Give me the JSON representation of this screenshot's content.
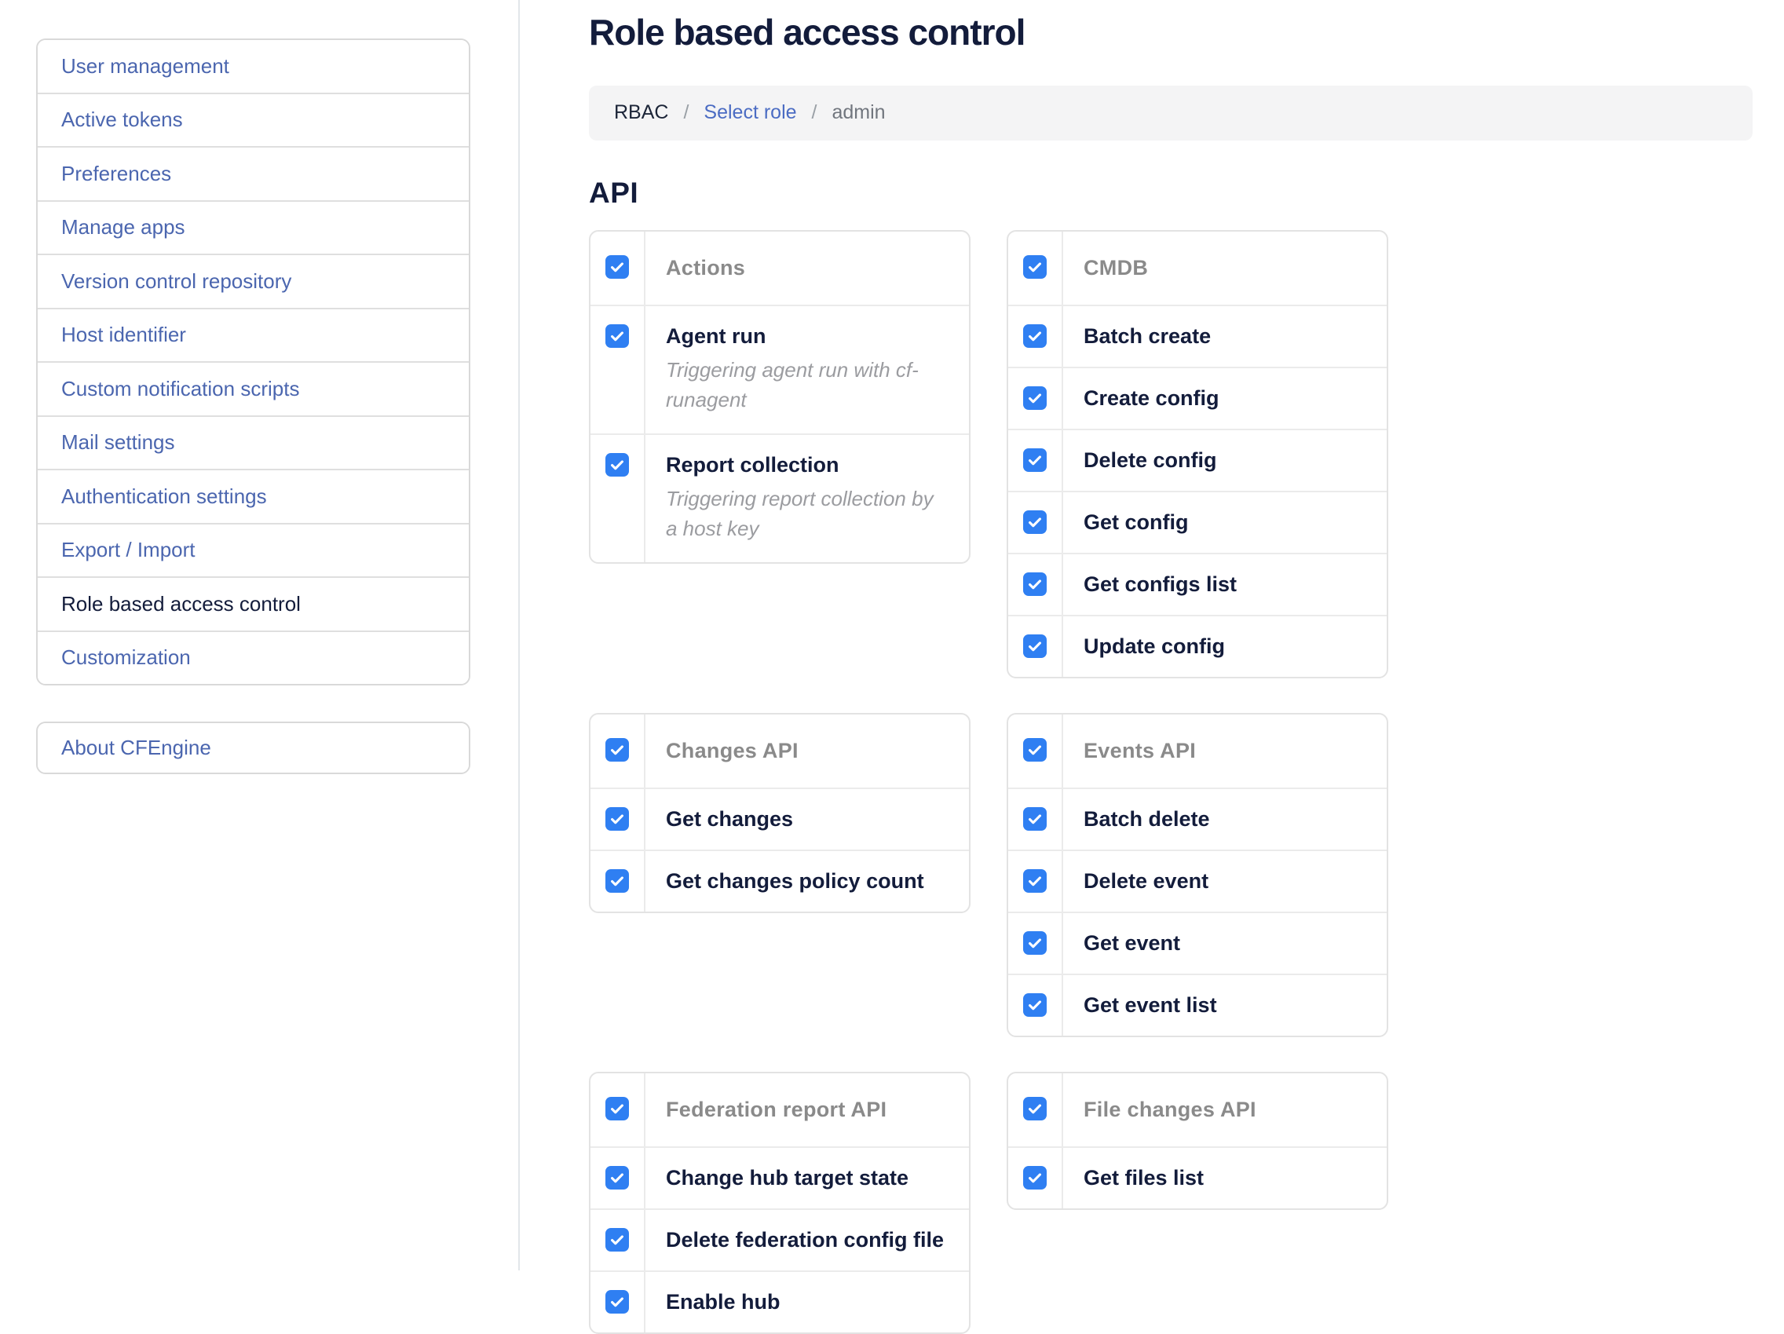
{
  "page": {
    "title": "Role based access control",
    "section_heading": "API"
  },
  "breadcrumb": {
    "separator": "/",
    "items": [
      {
        "label": "RBAC",
        "type": "text"
      },
      {
        "label": "Select role",
        "type": "link"
      },
      {
        "label": "admin",
        "type": "current"
      }
    ]
  },
  "sidebar": {
    "items": [
      {
        "label": "User management",
        "active": false
      },
      {
        "label": "Active tokens",
        "active": false
      },
      {
        "label": "Preferences",
        "active": false
      },
      {
        "label": "Manage apps",
        "active": false
      },
      {
        "label": "Version control repository",
        "active": false
      },
      {
        "label": "Host identifier",
        "active": false
      },
      {
        "label": "Custom notification scripts",
        "active": false
      },
      {
        "label": "Mail settings",
        "active": false
      },
      {
        "label": "Authentication settings",
        "active": false
      },
      {
        "label": "Export / Import",
        "active": false
      },
      {
        "label": "Role based access control",
        "active": true
      },
      {
        "label": "Customization",
        "active": false
      }
    ],
    "about_label": "About CFEngine"
  },
  "groups": [
    {
      "name": "Actions",
      "checked": true,
      "items": [
        {
          "label": "Agent run",
          "description": "Triggering agent run with cf-runagent",
          "checked": true
        },
        {
          "label": "Report collection",
          "description": "Triggering report collection by a host key",
          "checked": true
        }
      ]
    },
    {
      "name": "CMDB",
      "checked": true,
      "items": [
        {
          "label": "Batch create",
          "checked": true
        },
        {
          "label": "Create config",
          "checked": true
        },
        {
          "label": "Delete config",
          "checked": true
        },
        {
          "label": "Get config",
          "checked": true
        },
        {
          "label": "Get configs list",
          "checked": true
        },
        {
          "label": "Update config",
          "checked": true
        }
      ]
    },
    {
      "name": "Changes API",
      "checked": true,
      "items": [
        {
          "label": "Get changes",
          "checked": true
        },
        {
          "label": "Get changes policy count",
          "checked": true
        }
      ]
    },
    {
      "name": "Events API",
      "checked": true,
      "items": [
        {
          "label": "Batch delete",
          "checked": true
        },
        {
          "label": "Delete event",
          "checked": true
        },
        {
          "label": "Get event",
          "checked": true
        },
        {
          "label": "Get event list",
          "checked": true
        }
      ]
    },
    {
      "name": "Federation report API",
      "checked": true,
      "items": [
        {
          "label": "Change hub target state",
          "checked": true
        },
        {
          "label": "Delete federation config file",
          "checked": true
        },
        {
          "label": "Enable hub",
          "checked": true
        }
      ]
    },
    {
      "name": "File changes API",
      "checked": true,
      "items": [
        {
          "label": "Get files list",
          "checked": true
        }
      ]
    }
  ],
  "colors": {
    "accent": "#2f7ff2",
    "link": "#4b66af",
    "navy": "#131c3b",
    "group-gray": "#8a8a8a",
    "desc-gray": "#9b9ca0",
    "crumb-link": "#4b6cc3"
  }
}
